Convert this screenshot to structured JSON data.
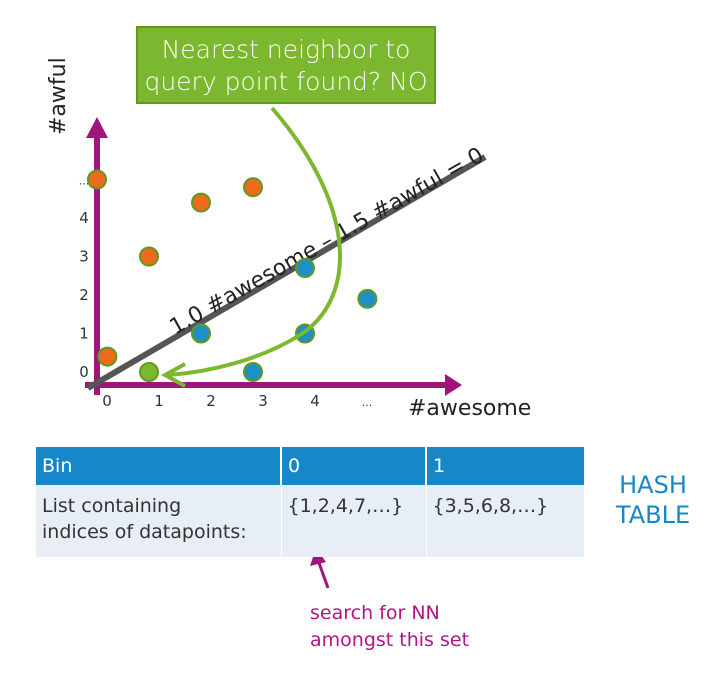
{
  "callout": {
    "line1": "Nearest neighbor to",
    "line2": "query point found? NO"
  },
  "chart_data": {
    "type": "scatter",
    "xlabel": "#awesome",
    "ylabel": "#awful",
    "x_ticks": [
      "0",
      "1",
      "2",
      "3",
      "4",
      "..."
    ],
    "y_ticks": [
      "0",
      "1",
      "2",
      "3",
      "4",
      "..."
    ],
    "decision_line_label": "1.0 #awesome – 1.5 #awful = 0",
    "bin1_points": [
      [
        0,
        5
      ],
      [
        1,
        3
      ],
      [
        2,
        4.4
      ],
      [
        3,
        4.8
      ],
      [
        0.2,
        0.4
      ]
    ],
    "bin0_points": [
      [
        2,
        1
      ],
      [
        3,
        0
      ],
      [
        4,
        1
      ],
      [
        4,
        2.7
      ],
      [
        5.2,
        1.9
      ]
    ],
    "query_point": [
      1,
      0
    ],
    "colors": {
      "bin1": "#ee6a1d",
      "bin0": "#1f8fc7",
      "query": "#7cb82f",
      "axis": "#a0157a",
      "line": "#4d4d4d",
      "arrow": "#7cb82f"
    }
  },
  "table": {
    "headers": [
      "Bin",
      "0",
      "1"
    ],
    "row_label_line1": "List containing",
    "row_label_line2": "indices of datapoints:",
    "bin0_list": "{1,2,4,7,…}",
    "bin1_list": "{3,5,6,8,…}"
  },
  "hash_label": {
    "line1": "HASH",
    "line2": "TABLE"
  },
  "note": {
    "line1": "search for NN",
    "line2": "amongst this set"
  }
}
